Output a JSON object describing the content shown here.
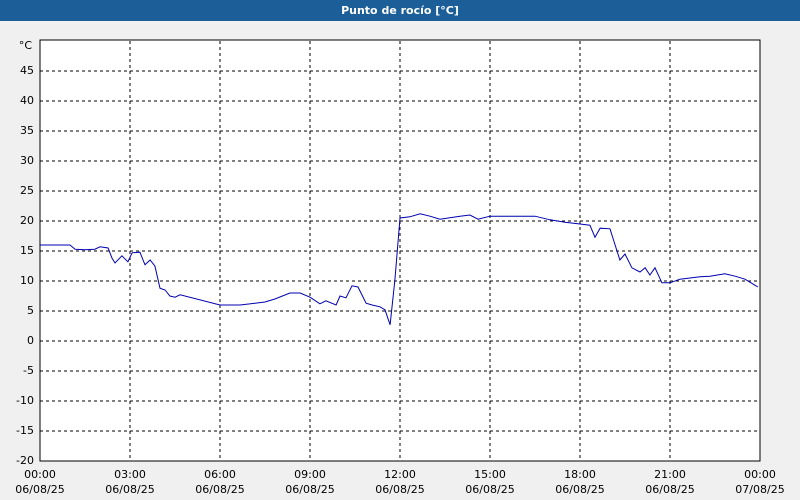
{
  "chart_data": {
    "type": "line",
    "title": "Punto de rocío [°C]",
    "y_label": "°C",
    "color": "#0000b0",
    "grid": true,
    "x": [
      0,
      1,
      1.17,
      1.5,
      1.83,
      2,
      2.27,
      2.4,
      2.5,
      2.73,
      2.93,
      3.07,
      3.33,
      3.5,
      3.67,
      3.83,
      4,
      4.17,
      4.33,
      4.5,
      4.67,
      6,
      6.67,
      7.5,
      7.83,
      8.33,
      8.67,
      9,
      9.33,
      9.53,
      9.87,
      10,
      10.2,
      10.4,
      10.6,
      10.87,
      11.07,
      11.33,
      11.5,
      11.67,
      11.83,
      12,
      12.33,
      12.67,
      13,
      13.33,
      14,
      14.33,
      14.6,
      15,
      16,
      16.5,
      17,
      17.5,
      18,
      18.33,
      18.5,
      18.67,
      19,
      19.17,
      19.33,
      19.5,
      19.73,
      20,
      20.17,
      20.33,
      20.5,
      20.73,
      21,
      21.33,
      22,
      22.33,
      22.83,
      23.17,
      23.5,
      23.83,
      23.93
    ],
    "values": [
      16,
      16,
      15.3,
      15.2,
      15.3,
      15.7,
      15.5,
      13.8,
      13,
      14.2,
      13.2,
      14.7,
      14.8,
      12.7,
      13.5,
      12.5,
      8.8,
      8.5,
      7.5,
      7.3,
      7.7,
      6,
      6,
      6.5,
      7,
      8,
      8,
      7.3,
      6.2,
      6.7,
      6,
      7.5,
      7.2,
      9.2,
      9,
      6.3,
      6,
      5.7,
      5.2,
      2.7,
      10.2,
      20.5,
      20.7,
      21.2,
      20.8,
      20.3,
      20.8,
      21,
      20.3,
      20.8,
      20.8,
      20.8,
      20.2,
      19.8,
      19.5,
      19.3,
      17.3,
      18.8,
      18.7,
      16,
      13.5,
      14.5,
      12.2,
      11.5,
      12.2,
      11,
      12.2,
      9.7,
      9.7,
      10.3,
      10.7,
      10.8,
      11.2,
      10.8,
      10.3,
      9.3,
      9
    ],
    "xlim": [
      0,
      24
    ],
    "xticks": [
      {
        "value": 0,
        "label": [
          "00:00",
          "06/08/25"
        ]
      },
      {
        "value": 3,
        "label": [
          "03:00",
          "06/08/25"
        ]
      },
      {
        "value": 6,
        "label": [
          "06:00",
          "06/08/25"
        ]
      },
      {
        "value": 9,
        "label": [
          "09:00",
          "06/08/25"
        ]
      },
      {
        "value": 12,
        "label": [
          "12:00",
          "06/08/25"
        ]
      },
      {
        "value": 15,
        "label": [
          "15:00",
          "06/08/25"
        ]
      },
      {
        "value": 18,
        "label": [
          "18:00",
          "06/08/25"
        ]
      },
      {
        "value": 21,
        "label": [
          "21:00",
          "06/08/25"
        ]
      },
      {
        "value": 24,
        "label": [
          "00:00",
          "07/08/25"
        ]
      }
    ],
    "ylim": [
      -20,
      50
    ],
    "yticks": [
      -20,
      -15,
      -10,
      -5,
      0,
      5,
      10,
      15,
      20,
      25,
      30,
      35,
      40,
      45
    ]
  }
}
